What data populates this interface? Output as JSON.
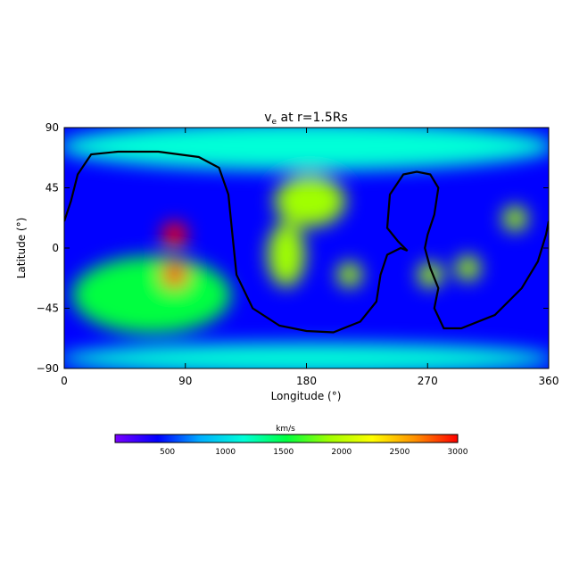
{
  "chart_data": {
    "type": "heatmap",
    "title_main": "v",
    "title_sub": "e",
    "title_rest": " at r=1.5Rs",
    "xlabel": "Longitude (°)",
    "ylabel": "Latitude (°)",
    "xlim": [
      0,
      360
    ],
    "ylim": [
      -90,
      90
    ],
    "xticks": [
      "0",
      "90",
      "180",
      "270",
      "360"
    ],
    "yticks": [
      "90",
      "45",
      "0",
      "−45",
      "−90"
    ],
    "colorbar": {
      "unit_label": "km/s",
      "range": [
        50,
        3000
      ],
      "ticks": [
        "500",
        "1000",
        "1500",
        "2000",
        "2500",
        "3000"
      ],
      "colors": [
        "#7a00ff",
        "#0000ff",
        "#00b0ff",
        "#00ffd8",
        "#00ff40",
        "#a0ff00",
        "#ffff00",
        "#ff9000",
        "#ff0000"
      ]
    },
    "background_value_kms": 300,
    "regions": [
      {
        "name": "north-polar-band",
        "lon": [
          0,
          360
        ],
        "lat": [
          62,
          90
        ],
        "value_kms": 1100
      },
      {
        "name": "southwest-plateau",
        "lon": [
          10,
          120
        ],
        "lat": [
          -60,
          -10
        ],
        "value_kms": 1400
      },
      {
        "name": "south-polar-band",
        "lon": [
          0,
          360
        ],
        "lat": [
          -90,
          -75
        ],
        "value_kms": 1100
      },
      {
        "name": "peak-north",
        "lon": [
          82,
          82
        ],
        "lat": [
          10,
          10
        ],
        "value_kms": 3000
      },
      {
        "name": "peak-south",
        "lon": [
          82,
          82
        ],
        "lat": [
          -20,
          -20
        ],
        "value_kms": 2950
      },
      {
        "name": "central-blob",
        "lon": [
          160,
          205
        ],
        "lat": [
          20,
          50
        ],
        "value_kms": 1800
      },
      {
        "name": "left-mid-blob",
        "lon": [
          155,
          175
        ],
        "lat": [
          -25,
          15
        ],
        "value_kms": 1800
      },
      {
        "name": "small-blob-210",
        "lon": [
          212,
          212
        ],
        "lat": [
          -20,
          -20
        ],
        "value_kms": 1900
      },
      {
        "name": "small-blob-275",
        "lon": [
          272,
          272
        ],
        "lat": [
          -20,
          -20
        ],
        "value_kms": 1800
      },
      {
        "name": "small-blob-300",
        "lon": [
          300,
          300
        ],
        "lat": [
          -15,
          -15
        ],
        "value_kms": 2000
      },
      {
        "name": "right-blob",
        "lon": [
          335,
          335
        ],
        "lat": [
          22,
          22
        ],
        "value_kms": 1950
      }
    ],
    "neutral_line": [
      [
        0,
        20
      ],
      [
        5,
        35
      ],
      [
        10,
        55
      ],
      [
        20,
        70
      ],
      [
        40,
        72
      ],
      [
        70,
        72
      ],
      [
        100,
        68
      ],
      [
        115,
        60
      ],
      [
        122,
        40
      ],
      [
        125,
        10
      ],
      [
        128,
        -20
      ],
      [
        140,
        -45
      ],
      [
        160,
        -58
      ],
      [
        180,
        -62
      ],
      [
        200,
        -63
      ],
      [
        220,
        -55
      ],
      [
        232,
        -40
      ],
      [
        235,
        -20
      ],
      [
        240,
        -5
      ],
      [
        250,
        0
      ],
      [
        255,
        -2
      ],
      [
        248,
        5
      ],
      [
        240,
        15
      ],
      [
        242,
        40
      ],
      [
        252,
        55
      ],
      [
        262,
        57
      ],
      [
        272,
        55
      ],
      [
        278,
        45
      ],
      [
        275,
        25
      ],
      [
        270,
        10
      ],
      [
        268,
        0
      ],
      [
        272,
        -15
      ],
      [
        278,
        -30
      ],
      [
        275,
        -45
      ],
      [
        282,
        -60
      ],
      [
        295,
        -60
      ],
      [
        320,
        -50
      ],
      [
        340,
        -30
      ],
      [
        352,
        -10
      ],
      [
        358,
        10
      ],
      [
        360,
        20
      ]
    ]
  }
}
